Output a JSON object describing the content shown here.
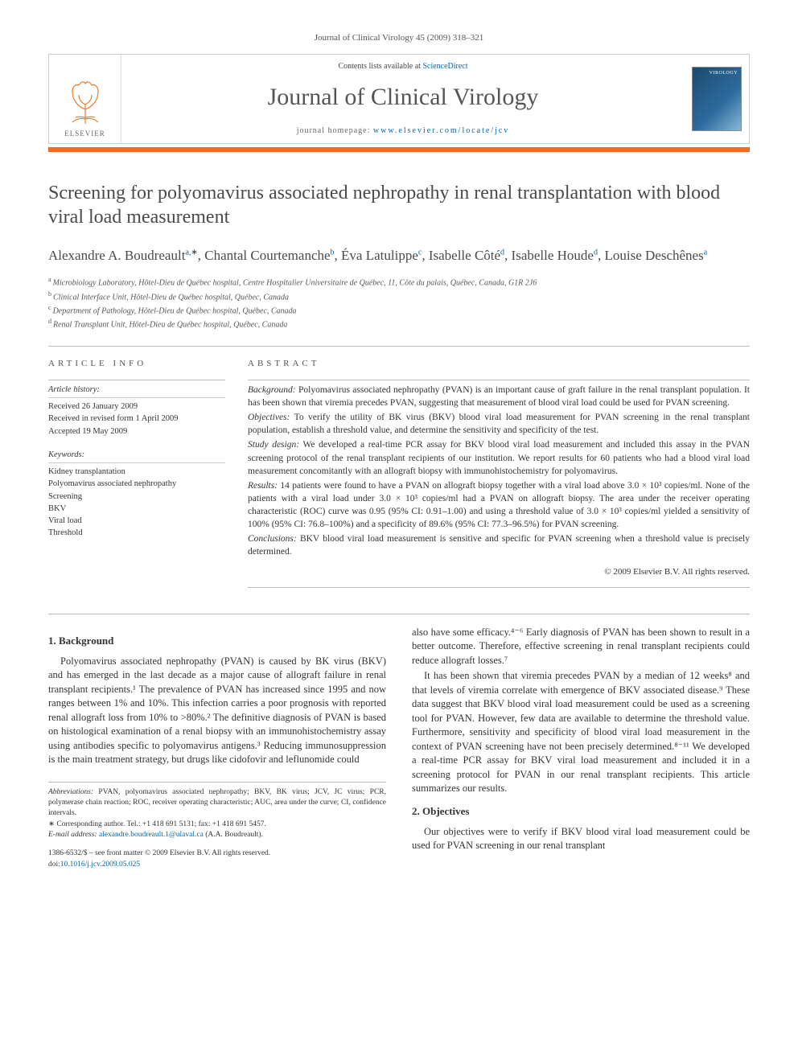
{
  "runningHead": "Journal of Clinical Virology 45 (2009) 318–321",
  "masthead": {
    "publisherWord": "ELSEVIER",
    "contentsPrefix": "Contents lists available at ",
    "contentsLink": "ScienceDirect",
    "journalTitle": "Journal of Clinical Virology",
    "homepagePrefix": "journal homepage: ",
    "homepageUrl": "www.elsevier.com/locate/jcv",
    "coverLabel": "VIROLOGY"
  },
  "article": {
    "title": "Screening for polyomavirus associated nephropathy in renal transplantation with blood viral load measurement",
    "authorsHtmlParts": [
      {
        "name": "Alexandre A. Boudreault",
        "aff": "a,",
        "star": true
      },
      {
        "name": "Chantal Courtemanche",
        "aff": "b"
      },
      {
        "name": "Éva Latulippe",
        "aff": "c"
      },
      {
        "name": "Isabelle Côté",
        "aff": "d"
      },
      {
        "name": "Isabelle Houde",
        "aff": "d"
      },
      {
        "name": "Louise Deschênes",
        "aff": "a"
      }
    ],
    "affiliations": [
      {
        "key": "a",
        "text": "Microbiology Laboratory, Hôtel-Dieu de Québec hospital, Centre Hospitalier Universitaire de Québec, 11, Côte du palais, Québec, Canada, G1R 2J6"
      },
      {
        "key": "b",
        "text": "Clinical Interface Unit, Hôtel-Dieu de Québec hospital, Québec, Canada"
      },
      {
        "key": "c",
        "text": "Department of Pathology, Hôtel-Dieu de Québec hospital, Québec, Canada"
      },
      {
        "key": "d",
        "text": "Renal Transplant Unit, Hôtel-Dieu de Québec hospital, Québec, Canada"
      }
    ]
  },
  "info": {
    "headInfo": "ARTICLE INFO",
    "historyHead": "Article history:",
    "history": [
      "Received 26 January 2009",
      "Received in revised form 1 April 2009",
      "Accepted 19 May 2009"
    ],
    "keywordsHead": "Keywords:",
    "keywords": [
      "Kidney transplantation",
      "Polyomavirus associated nephropathy",
      "Screening",
      "BKV",
      "Viral load",
      "Threshold"
    ]
  },
  "abstract": {
    "head": "ABSTRACT",
    "sections": [
      {
        "label": "Background:",
        "text": " Polyomavirus associated nephropathy (PVAN) is an important cause of graft failure in the renal transplant population. It has been shown that viremia precedes PVAN, suggesting that measurement of blood viral load could be used for PVAN screening."
      },
      {
        "label": "Objectives:",
        "text": " To verify the utility of BK virus (BKV) blood viral load measurement for PVAN screening in the renal transplant population, establish a threshold value, and determine the sensitivity and specificity of the test."
      },
      {
        "label": "Study design:",
        "text": " We developed a real-time PCR assay for BKV blood viral load measurement and included this assay in the PVAN screening protocol of the renal transplant recipients of our institution. We report results for 60 patients who had a blood viral load measurement concomitantly with an allograft biopsy with immunohistochemistry for polyomavirus."
      },
      {
        "label": "Results:",
        "text": " 14 patients were found to have a PVAN on allograft biopsy together with a viral load above 3.0 × 10³ copies/ml. None of the patients with a viral load under 3.0 × 10³ copies/ml had a PVAN on allograft biopsy. The area under the receiver operating characteristic (ROC) curve was 0.95 (95% CI: 0.91–1.00) and using a threshold value of 3.0 × 10³ copies/ml yielded a sensitivity of 100% (95% CI: 76.8–100%) and a specificity of 89.6% (95% CI: 77.3–96.5%) for PVAN screening."
      },
      {
        "label": "Conclusions:",
        "text": " BKV blood viral load measurement is sensitive and specific for PVAN screening when a threshold value is precisely determined."
      }
    ],
    "copyright": "© 2009 Elsevier B.V. All rights reserved."
  },
  "body": {
    "left": {
      "secHead": "1. Background",
      "paras": [
        "Polyomavirus associated nephropathy (PVAN) is caused by BK virus (BKV) and has emerged in the last decade as a major cause of allograft failure in renal transplant recipients.¹ The prevalence of PVAN has increased since 1995 and now ranges between 1% and 10%. This infection carries a poor prognosis with reported renal allograft loss from 10% to >80%.² The definitive diagnosis of PVAN is based on histological examination of a renal biopsy with an immunohistochemistry assay using antibodies specific to polyomavirus antigens.³ Reducing immunosuppression is the main treatment strategy, but drugs like cidofovir and leflunomide could"
      ],
      "footnotes": {
        "abbrevLabel": "Abbreviations:",
        "abbrevText": " PVAN, polyomavirus associated nephropathy; BKV, BK virus; JCV, JC virus; PCR, polymerase chain reaction; ROC, receiver operating characteristic; AUC, area under the curve; CI, confidence intervals.",
        "corrLabel": "∗ Corresponding author.",
        "corrText": " Tel.: +1 418 691 5131; fax: +1 418 691 5457.",
        "emailLabel": "E-mail address:",
        "emailLink": "alexandre.boudreault.1@ulaval.ca",
        "emailTail": " (A.A. Boudreault)."
      },
      "doi": {
        "line1": "1386-6532/$ – see front matter © 2009 Elsevier B.V. All rights reserved.",
        "line2pre": "doi:",
        "line2link": "10.1016/j.jcv.2009.05.025"
      }
    },
    "right": {
      "paras": [
        "also have some efficacy.⁴⁻⁶ Early diagnosis of PVAN has been shown to result in a better outcome. Therefore, effective screening in renal transplant recipients could reduce allograft losses.⁷",
        "It has been shown that viremia precedes PVAN by a median of 12 weeks⁸ and that levels of viremia correlate with emergence of BKV associated disease.⁹ These data suggest that BKV blood viral load measurement could be used as a screening tool for PVAN. However, few data are available to determine the threshold value. Furthermore, sensitivity and specificity of blood viral load measurement in the context of PVAN screening have not been precisely determined.⁸⁻¹¹ We developed a real-time PCR assay for BKV viral load measurement and included it in a screening protocol for PVAN in our renal transplant recipients. This article summarizes our results."
      ],
      "secHead": "2. Objectives",
      "paras2": [
        "Our objectives were to verify if BKV blood viral load measurement could be used for PVAN screening in our renal transplant"
      ]
    }
  }
}
